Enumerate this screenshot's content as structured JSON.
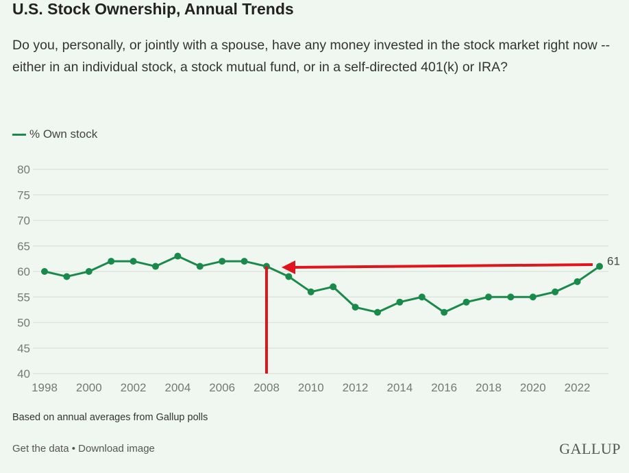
{
  "header": {
    "title": "U.S. Stock Ownership, Annual Trends",
    "subtitle": "Do you, personally, or jointly with a spouse, have any money invested in the stock market right now -- either in an individual stock, a stock mutual fund, or in a self-directed 401(k) or IRA?"
  },
  "chart_data": {
    "type": "line",
    "title": "U.S. Stock Ownership, Annual Trends",
    "xlabel": "",
    "ylabel": "",
    "ylim": [
      40,
      80
    ],
    "yticks": [
      40,
      45,
      50,
      55,
      60,
      65,
      70,
      75,
      80
    ],
    "xticks": [
      1998,
      2000,
      2002,
      2004,
      2006,
      2008,
      2010,
      2012,
      2014,
      2016,
      2018,
      2020,
      2022
    ],
    "grid": true,
    "legend_position": "top-left",
    "x": [
      1998,
      1999,
      2000,
      2001,
      2002,
      2003,
      2004,
      2005,
      2006,
      2007,
      2008,
      2009,
      2010,
      2011,
      2012,
      2013,
      2014,
      2015,
      2016,
      2017,
      2018,
      2019,
      2020,
      2021,
      2022,
      2023
    ],
    "series": [
      {
        "name": "% Own stock",
        "color": "#1a8a4a",
        "values": [
          60,
          59,
          60,
          62,
          62,
          61,
          63,
          61,
          62,
          62,
          61,
          59,
          56,
          57,
          53,
          52,
          54,
          55,
          52,
          54,
          55,
          55,
          55,
          56,
          58,
          61
        ]
      }
    ],
    "end_label": "61",
    "annotation_color": "#e0141c"
  },
  "footer": {
    "note": "Based on annual averages from Gallup polls",
    "get_data": "Get the data",
    "separator": " • ",
    "download": "Download image",
    "logo": "GALLUP"
  }
}
